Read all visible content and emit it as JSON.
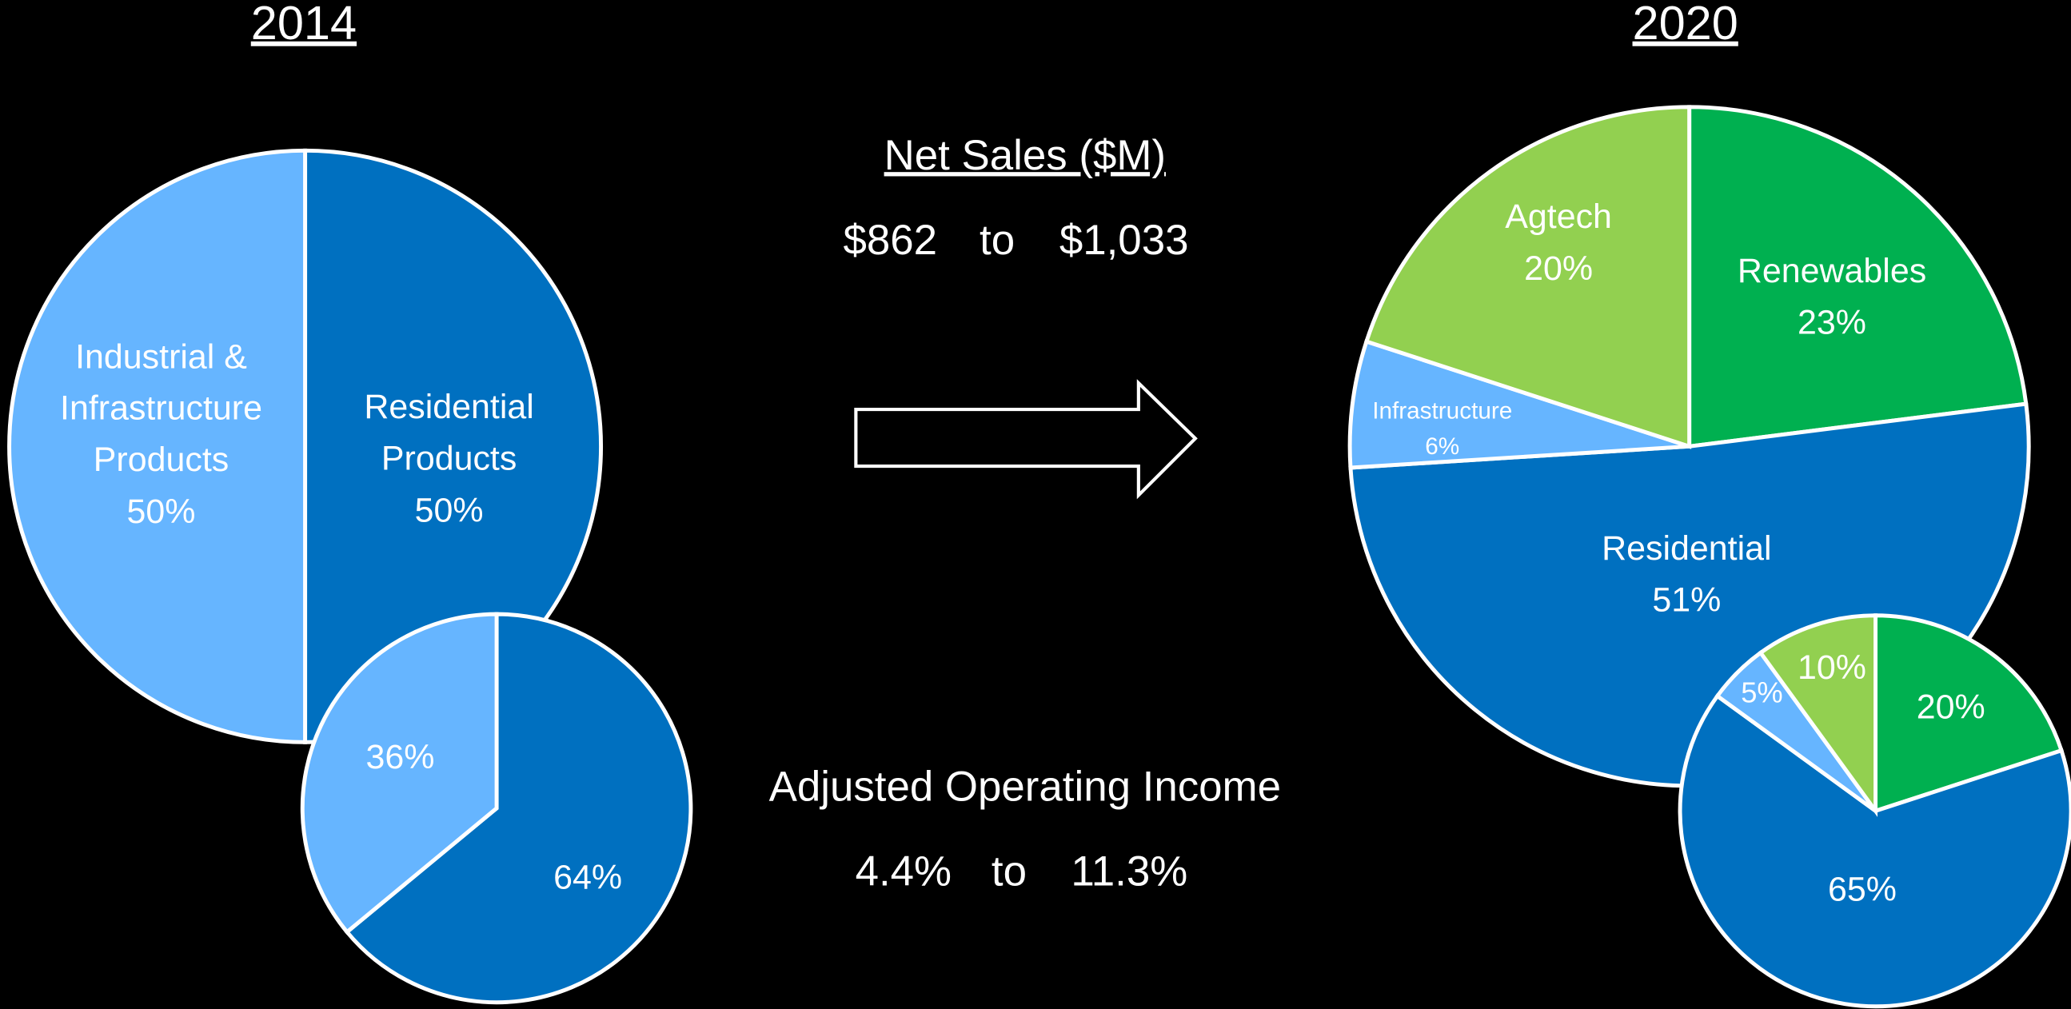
{
  "chart_data": [
    {
      "type": "pie",
      "title": "2014",
      "categories": [
        "Residential Products",
        "Industrial & Infrastructure Products"
      ],
      "values": [
        50,
        50
      ],
      "value_labels": [
        "50%",
        "50%"
      ],
      "colors": [
        "#0070c0",
        "#66b5ff"
      ]
    },
    {
      "type": "pie",
      "categories": [
        null,
        null
      ],
      "values": [
        64,
        36
      ],
      "value_labels": [
        "64%",
        "36%"
      ],
      "colors": [
        "#0070c0",
        "#66b5ff"
      ]
    },
    {
      "type": "pie",
      "title": "2020",
      "categories": [
        "Renewables",
        "Residential",
        "Infrastructure",
        "Agtech"
      ],
      "values": [
        23,
        51,
        6,
        20
      ],
      "value_labels": [
        "23%",
        "51%",
        "6%",
        "20%"
      ],
      "colors": [
        "#00b050",
        "#0070c0",
        "#66b5ff",
        "#92d050"
      ]
    },
    {
      "type": "pie",
      "categories": [
        null,
        null,
        null,
        null
      ],
      "values": [
        20,
        65,
        5,
        10
      ],
      "value_labels": [
        "20%",
        "65%",
        "5%",
        "10%"
      ],
      "colors": [
        "#00b050",
        "#0070c0",
        "#66b5ff",
        "#92d050"
      ]
    }
  ],
  "summary": {
    "net_sales": {
      "label": "Net Sales ($M)",
      "from": "$862",
      "to": "to",
      "until": "$1,033"
    },
    "operating_income": {
      "label": "Adjusted Operating Income",
      "from": "4.4%",
      "to": "to",
      "until": "11.3%"
    }
  }
}
